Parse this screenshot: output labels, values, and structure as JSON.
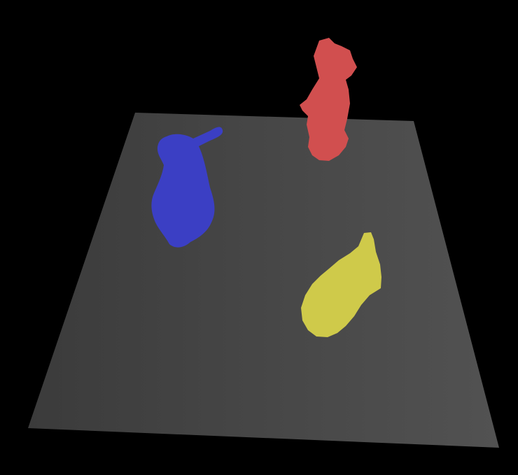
{
  "scene": {
    "background_color": "#000000",
    "ground_plane": {
      "color_dark": "#3b3b3b",
      "color_light": "#525252"
    },
    "objects": [
      {
        "name": "blue-object",
        "color": "#3b3fc4"
      },
      {
        "name": "red-object",
        "color": "#d14f4f"
      },
      {
        "name": "yellow-object",
        "color": "#cfca4a"
      }
    ]
  }
}
